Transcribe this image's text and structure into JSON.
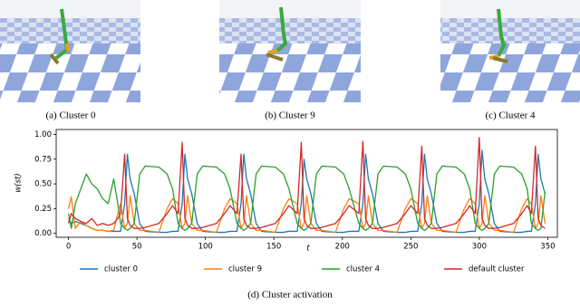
{
  "subfigures": [
    {
      "caption": "(a) Cluster 0"
    },
    {
      "caption": "(b) Cluster 9"
    },
    {
      "caption": "(c) Cluster 4"
    }
  ],
  "chart_caption": "(d) Cluster activation",
  "chart_data": {
    "type": "line",
    "xlabel": "t",
    "ylabel": "w(st)",
    "legend": "bottom",
    "xlim": [
      -9,
      357
    ],
    "ylim": [
      -0.04,
      1.05
    ],
    "xticks": [
      0,
      50,
      100,
      150,
      200,
      250,
      300,
      350
    ],
    "yticks": [
      {
        "value": 0,
        "label": "0.00"
      },
      {
        "value": 0.25,
        "label": "0.25"
      },
      {
        "value": 0.5,
        "label": "0.50"
      },
      {
        "value": 0.75,
        "label": "0.75"
      },
      {
        "value": 1,
        "label": "1.00"
      }
    ],
    "x": [
      0,
      2,
      5,
      9,
      13,
      17,
      21,
      25,
      29,
      33,
      36,
      38,
      41,
      43,
      45,
      48,
      52,
      56,
      66,
      72,
      76,
      80,
      83,
      85,
      87,
      90,
      94,
      98,
      108,
      114,
      118,
      123,
      126,
      128,
      130,
      133,
      137,
      141,
      151,
      157,
      161,
      167,
      170,
      172,
      174,
      177,
      181,
      185,
      195,
      201,
      205,
      212,
      215,
      217,
      219,
      222,
      226,
      230,
      240,
      246,
      250,
      255,
      258,
      260,
      262,
      265,
      269,
      273,
      283,
      289,
      293,
      297,
      300,
      302,
      304,
      307,
      311,
      315,
      325,
      331,
      335,
      338,
      341,
      343,
      345,
      348
    ],
    "series": [
      {
        "name": "cluster 0",
        "color": "#1f77b4",
        "values": [
          0.15,
          0.1,
          0.12,
          0.1,
          0.08,
          0.05,
          0.03,
          0.03,
          0.02,
          0.02,
          0.02,
          0.02,
          0.3,
          0.8,
          0.55,
          0.4,
          0.1,
          0.02,
          0.01,
          0.01,
          0.02,
          0.02,
          0.3,
          0.8,
          0.55,
          0.4,
          0.1,
          0.02,
          0.01,
          0.01,
          0.02,
          0.02,
          0.3,
          0.8,
          0.55,
          0.4,
          0.1,
          0.02,
          0.01,
          0.01,
          0.02,
          0.02,
          0.3,
          0.75,
          0.55,
          0.4,
          0.1,
          0.02,
          0.01,
          0.01,
          0.02,
          0.02,
          0.3,
          0.8,
          0.55,
          0.4,
          0.1,
          0.02,
          0.01,
          0.01,
          0.02,
          0.02,
          0.3,
          0.8,
          0.55,
          0.4,
          0.1,
          0.02,
          0.01,
          0.01,
          0.02,
          0.02,
          0.3,
          0.84,
          0.55,
          0.4,
          0.1,
          0.02,
          0.01,
          0.01,
          0.02,
          0.02,
          0.3,
          0.8,
          0.55,
          0.4
        ]
      },
      {
        "name": "cluster 9",
        "color": "#ff7f0e",
        "values": [
          0.25,
          0.37,
          0.05,
          0.12,
          0.08,
          0.05,
          0.03,
          0.03,
          0.02,
          0.03,
          0.2,
          0.3,
          0.05,
          0.1,
          0.38,
          0.1,
          0.03,
          0.03,
          0.01,
          0.25,
          0.35,
          0.3,
          0.05,
          0.1,
          0.38,
          0.1,
          0.03,
          0.03,
          0.01,
          0.25,
          0.35,
          0.3,
          0.05,
          0.1,
          0.38,
          0.1,
          0.03,
          0.03,
          0.01,
          0.25,
          0.35,
          0.3,
          0.05,
          0.1,
          0.38,
          0.1,
          0.03,
          0.03,
          0.01,
          0.25,
          0.35,
          0.3,
          0.05,
          0.1,
          0.38,
          0.1,
          0.03,
          0.03,
          0.01,
          0.25,
          0.35,
          0.3,
          0.05,
          0.1,
          0.38,
          0.1,
          0.03,
          0.03,
          0.01,
          0.25,
          0.35,
          0.3,
          0.05,
          0.1,
          0.38,
          0.1,
          0.03,
          0.03,
          0.01,
          0.25,
          0.35,
          0.3,
          0.05,
          0.1,
          0.38,
          0.1
        ]
      },
      {
        "name": "cluster 4",
        "color": "#2ca02c",
        "values": [
          0.2,
          0.05,
          0.3,
          0.45,
          0.6,
          0.5,
          0.45,
          0.35,
          0.3,
          0.55,
          0.3,
          0.1,
          0.05,
          0.03,
          0.05,
          0.1,
          0.6,
          0.68,
          0.67,
          0.6,
          0.45,
          0.1,
          0.05,
          0.03,
          0.05,
          0.1,
          0.6,
          0.68,
          0.67,
          0.6,
          0.45,
          0.1,
          0.05,
          0.03,
          0.05,
          0.1,
          0.6,
          0.68,
          0.67,
          0.6,
          0.45,
          0.1,
          0.05,
          0.03,
          0.05,
          0.1,
          0.6,
          0.68,
          0.67,
          0.6,
          0.45,
          0.1,
          0.05,
          0.03,
          0.05,
          0.1,
          0.6,
          0.68,
          0.67,
          0.6,
          0.45,
          0.1,
          0.05,
          0.03,
          0.05,
          0.1,
          0.6,
          0.68,
          0.67,
          0.6,
          0.45,
          0.1,
          0.05,
          0.03,
          0.05,
          0.1,
          0.6,
          0.68,
          0.67,
          0.6,
          0.45,
          0.1,
          0.05,
          0.03,
          0.05,
          0.42
        ]
      },
      {
        "name": "default cluster",
        "color": "#d62728",
        "values": [
          0.1,
          0.2,
          0.15,
          0.12,
          0.1,
          0.15,
          0.08,
          0.1,
          0.08,
          0.1,
          0.15,
          0.2,
          0.8,
          0.15,
          0.08,
          0.05,
          0.05,
          0.06,
          0.1,
          0.2,
          0.28,
          0.2,
          0.92,
          0.15,
          0.08,
          0.05,
          0.05,
          0.06,
          0.1,
          0.2,
          0.28,
          0.2,
          0.8,
          0.15,
          0.08,
          0.05,
          0.05,
          0.06,
          0.1,
          0.2,
          0.28,
          0.2,
          0.92,
          0.15,
          0.08,
          0.05,
          0.05,
          0.06,
          0.1,
          0.2,
          0.28,
          0.2,
          0.93,
          0.15,
          0.08,
          0.05,
          0.05,
          0.06,
          0.1,
          0.2,
          0.28,
          0.2,
          0.88,
          0.15,
          0.08,
          0.05,
          0.05,
          0.06,
          0.1,
          0.2,
          0.28,
          0.2,
          0.97,
          0.15,
          0.08,
          0.05,
          0.05,
          0.06,
          0.1,
          0.2,
          0.28,
          0.2,
          0.88,
          0.15,
          0.08,
          0.05
        ]
      }
    ]
  }
}
